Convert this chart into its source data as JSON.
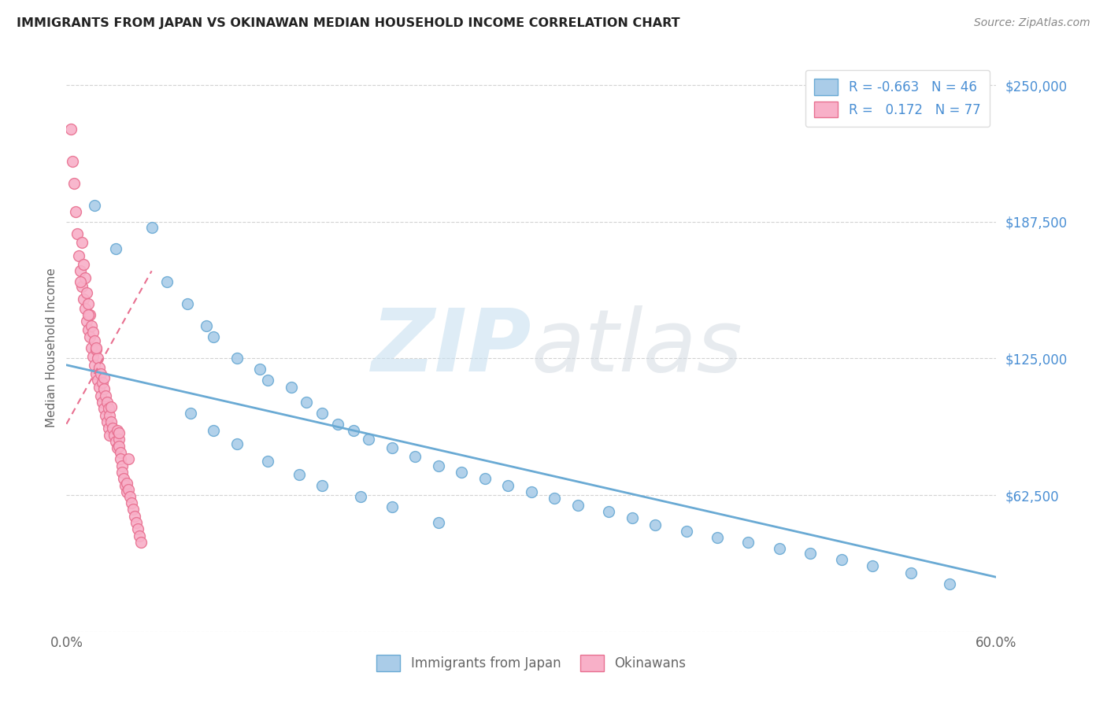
{
  "title": "IMMIGRANTS FROM JAPAN VS OKINAWAN MEDIAN HOUSEHOLD INCOME CORRELATION CHART",
  "source": "Source: ZipAtlas.com",
  "ylabel": "Median Household Income",
  "yticks": [
    0,
    62500,
    125000,
    187500,
    250000
  ],
  "ytick_labels": [
    "",
    "$62,500",
    "$125,000",
    "$187,500",
    "$250,000"
  ],
  "xmin": 0.0,
  "xmax": 0.6,
  "ymin": 0,
  "ymax": 260000,
  "blue_scatter_x": [
    0.018,
    0.032,
    0.055,
    0.065,
    0.078,
    0.09,
    0.095,
    0.11,
    0.125,
    0.13,
    0.145,
    0.155,
    0.165,
    0.175,
    0.185,
    0.195,
    0.21,
    0.225,
    0.24,
    0.255,
    0.27,
    0.285,
    0.3,
    0.315,
    0.33,
    0.35,
    0.365,
    0.38,
    0.4,
    0.42,
    0.44,
    0.46,
    0.48,
    0.5,
    0.52,
    0.545,
    0.57,
    0.08,
    0.095,
    0.11,
    0.13,
    0.15,
    0.165,
    0.19,
    0.21,
    0.24
  ],
  "blue_scatter_y": [
    195000,
    175000,
    185000,
    160000,
    150000,
    140000,
    135000,
    125000,
    120000,
    115000,
    112000,
    105000,
    100000,
    95000,
    92000,
    88000,
    84000,
    80000,
    76000,
    73000,
    70000,
    67000,
    64000,
    61000,
    58000,
    55000,
    52000,
    49000,
    46000,
    43000,
    41000,
    38000,
    36000,
    33000,
    30000,
    27000,
    22000,
    100000,
    92000,
    86000,
    78000,
    72000,
    67000,
    62000,
    57000,
    50000
  ],
  "pink_scatter_x": [
    0.003,
    0.004,
    0.005,
    0.006,
    0.007,
    0.008,
    0.009,
    0.01,
    0.01,
    0.011,
    0.011,
    0.012,
    0.012,
    0.013,
    0.013,
    0.014,
    0.014,
    0.015,
    0.015,
    0.016,
    0.016,
    0.017,
    0.017,
    0.018,
    0.018,
    0.019,
    0.019,
    0.02,
    0.02,
    0.021,
    0.021,
    0.022,
    0.022,
    0.023,
    0.023,
    0.024,
    0.024,
    0.025,
    0.025,
    0.026,
    0.026,
    0.027,
    0.027,
    0.028,
    0.028,
    0.029,
    0.03,
    0.031,
    0.032,
    0.033,
    0.033,
    0.034,
    0.034,
    0.035,
    0.035,
    0.036,
    0.036,
    0.037,
    0.038,
    0.039,
    0.039,
    0.04,
    0.041,
    0.042,
    0.043,
    0.044,
    0.045,
    0.046,
    0.047,
    0.048,
    0.009,
    0.014,
    0.019,
    0.024,
    0.029,
    0.034,
    0.04
  ],
  "pink_scatter_y": [
    230000,
    215000,
    205000,
    192000,
    182000,
    172000,
    165000,
    178000,
    158000,
    168000,
    152000,
    162000,
    148000,
    155000,
    142000,
    150000,
    138000,
    145000,
    135000,
    140000,
    130000,
    137000,
    126000,
    133000,
    122000,
    129000,
    118000,
    125000,
    115000,
    121000,
    112000,
    118000,
    108000,
    114000,
    105000,
    111000,
    102000,
    108000,
    99000,
    105000,
    96000,
    102000,
    93000,
    99000,
    90000,
    96000,
    93000,
    90000,
    87000,
    84000,
    92000,
    88000,
    85000,
    82000,
    79000,
    76000,
    73000,
    70000,
    67000,
    64000,
    68000,
    65000,
    62000,
    59000,
    56000,
    53000,
    50000,
    47000,
    44000,
    41000,
    160000,
    145000,
    130000,
    116000,
    103000,
    91000,
    79000
  ],
  "blue_line_x": [
    0.0,
    0.6
  ],
  "blue_line_y": [
    122000,
    25000
  ],
  "pink_line_x": [
    0.0,
    0.055
  ],
  "pink_line_y": [
    95000,
    165000
  ],
  "scatter_size": 100,
  "blue_color": "#6aaad4",
  "pink_color": "#e87090",
  "blue_fill": "#aacce8",
  "pink_fill": "#f8b0c8",
  "grid_color": "#c8c8c8",
  "background_color": "#ffffff",
  "title_color": "#222222",
  "axis_label_color": "#666666",
  "ytick_color": "#4a8fd4",
  "source_color": "#888888",
  "legend_label_color": "#4a8fd4"
}
